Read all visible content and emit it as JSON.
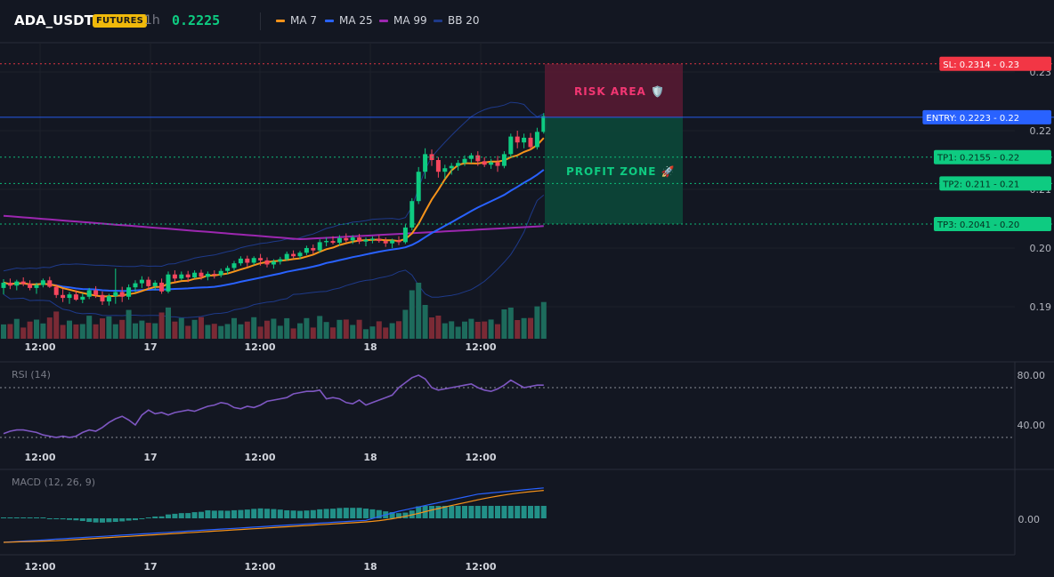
{
  "header": {
    "symbol": "ADA_USDT",
    "market_badge": "FUTURES",
    "timeframe": "1h",
    "last_price": "0.2225",
    "indicators": [
      {
        "label": "MA 7",
        "color": "#f7931a"
      },
      {
        "label": "MA 25",
        "color": "#2962ff"
      },
      {
        "label": "MA 99",
        "color": "#9c27b0"
      },
      {
        "label": "BB 20",
        "color": "#1e3a8a"
      }
    ]
  },
  "chart_data": {
    "type": "candlestick",
    "x_ticks": [
      "12:00",
      "17",
      "12:00",
      "18",
      "12:00"
    ],
    "y_ticks": [
      "0.19",
      "0.20",
      "0.21",
      "0.22",
      "0.23"
    ],
    "levels": [
      {
        "label": "SL: 0.2314",
        "suffix": "0.23",
        "price": 0.2314,
        "color": "#f23645",
        "style": "dotted"
      },
      {
        "label": "ENTRY: 0.2223",
        "suffix": "0.22",
        "price": 0.2223,
        "color": "#2962ff",
        "style": "solid"
      },
      {
        "label": "TP1: 0.2155",
        "suffix": "0.22",
        "price": 0.2155,
        "color": "#0ecb81",
        "style": "dotted"
      },
      {
        "label": "TP2: 0.211",
        "suffix": "0.21",
        "price": 0.211,
        "color": "#0ecb81",
        "style": "dotted"
      },
      {
        "label": "TP3: 0.2041",
        "suffix": "0.20",
        "price": 0.2041,
        "color": "#0ecb81",
        "style": "dotted"
      }
    ],
    "zones": {
      "risk_label": "RISK AREA 🛡️",
      "profit_label": "PROFIT ZONE 🚀"
    },
    "rsi": {
      "title": "RSI (14)",
      "y_ticks": [
        "80.00",
        "40.00"
      ],
      "upper": 70,
      "lower": 30,
      "values": [
        33,
        35,
        36,
        36,
        35,
        34,
        32,
        31,
        30,
        31,
        30,
        31,
        34,
        36,
        35,
        38,
        42,
        45,
        47,
        44,
        40,
        48,
        52,
        49,
        50,
        48,
        50,
        51,
        52,
        51,
        53,
        55,
        56,
        58,
        57,
        54,
        53,
        55,
        54,
        56,
        59,
        60,
        61,
        62,
        65,
        66,
        67,
        67,
        68,
        61,
        62,
        61,
        58,
        57,
        60,
        56,
        58,
        60,
        62,
        64,
        70,
        74,
        78,
        80,
        77,
        70,
        68,
        69,
        70,
        71,
        72,
        73,
        70,
        68,
        67,
        69,
        72,
        76,
        73,
        70,
        71,
        72,
        72
      ]
    },
    "macd": {
      "title": "MACD (12, 26, 9)",
      "y_ticks": [
        "0.00"
      ]
    },
    "candles": [
      [
        0.1932,
        0.1947,
        0.1921,
        0.1941
      ],
      [
        0.1941,
        0.1948,
        0.193,
        0.1936
      ],
      [
        0.1936,
        0.1946,
        0.1928,
        0.1943
      ],
      [
        0.1943,
        0.195,
        0.1935,
        0.1939
      ],
      [
        0.1939,
        0.1945,
        0.1928,
        0.1932
      ],
      [
        0.1932,
        0.1941,
        0.1922,
        0.1937
      ],
      [
        0.1937,
        0.1948,
        0.1933,
        0.1945
      ],
      [
        0.1945,
        0.1951,
        0.1932,
        0.1934
      ],
      [
        0.1934,
        0.1938,
        0.1915,
        0.192
      ],
      [
        0.192,
        0.193,
        0.1908,
        0.1915
      ],
      [
        0.1915,
        0.1925,
        0.1905,
        0.1921
      ],
      [
        0.1921,
        0.1928,
        0.191,
        0.1912
      ],
      [
        0.1912,
        0.1923,
        0.1906,
        0.1917
      ],
      [
        0.1917,
        0.1932,
        0.1913,
        0.1928
      ],
      [
        0.1928,
        0.1935,
        0.1915,
        0.192
      ],
      [
        0.192,
        0.1926,
        0.1903,
        0.1909
      ],
      [
        0.1909,
        0.1922,
        0.1902,
        0.1918
      ],
      [
        0.1918,
        0.1965,
        0.1905,
        0.1925
      ],
      [
        0.1925,
        0.1934,
        0.1908,
        0.1917
      ],
      [
        0.1917,
        0.1938,
        0.1912,
        0.1933
      ],
      [
        0.1933,
        0.1945,
        0.1925,
        0.194
      ],
      [
        0.194,
        0.1952,
        0.1932,
        0.1946
      ],
      [
        0.1946,
        0.1951,
        0.193,
        0.1935
      ],
      [
        0.1935,
        0.1945,
        0.1928,
        0.1941
      ],
      [
        0.1941,
        0.1948,
        0.1922,
        0.1926
      ],
      [
        0.1926,
        0.196,
        0.1923,
        0.1955
      ],
      [
        0.1955,
        0.1962,
        0.1942,
        0.1948
      ],
      [
        0.1948,
        0.196,
        0.1945,
        0.1955
      ],
      [
        0.1955,
        0.1961,
        0.1942,
        0.195
      ],
      [
        0.195,
        0.1962,
        0.1948,
        0.1958
      ],
      [
        0.1958,
        0.1963,
        0.1946,
        0.1951
      ],
      [
        0.1951,
        0.196,
        0.1945,
        0.1956
      ],
      [
        0.1956,
        0.1962,
        0.1948,
        0.1954
      ],
      [
        0.1954,
        0.1965,
        0.195,
        0.1961
      ],
      [
        0.1961,
        0.197,
        0.1955,
        0.1966
      ],
      [
        0.1966,
        0.1978,
        0.1962,
        0.1974
      ],
      [
        0.1974,
        0.1986,
        0.197,
        0.1982
      ],
      [
        0.1982,
        0.1987,
        0.1968,
        0.1975
      ],
      [
        0.1975,
        0.1986,
        0.1971,
        0.1983
      ],
      [
        0.1983,
        0.199,
        0.197,
        0.1979
      ],
      [
        0.1979,
        0.1984,
        0.1967,
        0.1972
      ],
      [
        0.1972,
        0.1981,
        0.1965,
        0.1977
      ],
      [
        0.1977,
        0.1985,
        0.1972,
        0.1981
      ],
      [
        0.1981,
        0.1994,
        0.1978,
        0.199
      ],
      [
        0.199,
        0.1996,
        0.1983,
        0.1986
      ],
      [
        0.1986,
        0.1995,
        0.1981,
        0.1992
      ],
      [
        0.1992,
        0.2004,
        0.1988,
        0.2
      ],
      [
        0.2,
        0.2006,
        0.199,
        0.1996
      ],
      [
        0.1996,
        0.2015,
        0.1992,
        0.201
      ],
      [
        0.201,
        0.2018,
        0.2003,
        0.2012
      ],
      [
        0.2012,
        0.202,
        0.2006,
        0.2009
      ],
      [
        0.2009,
        0.2022,
        0.2004,
        0.2017
      ],
      [
        0.2017,
        0.2025,
        0.201,
        0.2013
      ],
      [
        0.2013,
        0.2022,
        0.2007,
        0.2018
      ],
      [
        0.2018,
        0.2024,
        0.2007,
        0.2011
      ],
      [
        0.2011,
        0.2018,
        0.2003,
        0.2014
      ],
      [
        0.2014,
        0.202,
        0.2008,
        0.2016
      ],
      [
        0.2016,
        0.2022,
        0.2009,
        0.2012
      ],
      [
        0.2012,
        0.2018,
        0.2002,
        0.2008
      ],
      [
        0.2008,
        0.2016,
        0.2,
        0.2013
      ],
      [
        0.2013,
        0.202,
        0.2005,
        0.201
      ],
      [
        0.201,
        0.204,
        0.2007,
        0.2035
      ],
      [
        0.2035,
        0.2085,
        0.203,
        0.208
      ],
      [
        0.208,
        0.2138,
        0.2075,
        0.213
      ],
      [
        0.213,
        0.217,
        0.2118,
        0.216
      ],
      [
        0.216,
        0.2168,
        0.214,
        0.215
      ],
      [
        0.215,
        0.2155,
        0.212,
        0.213
      ],
      [
        0.213,
        0.2142,
        0.2118,
        0.2136
      ],
      [
        0.2136,
        0.2145,
        0.2125,
        0.214
      ],
      [
        0.214,
        0.215,
        0.2132,
        0.2145
      ],
      [
        0.2145,
        0.2158,
        0.214,
        0.2152
      ],
      [
        0.2152,
        0.2162,
        0.2145,
        0.2158
      ],
      [
        0.2158,
        0.2165,
        0.214,
        0.2148
      ],
      [
        0.2148,
        0.2155,
        0.2138,
        0.2142
      ],
      [
        0.2142,
        0.2152,
        0.2135,
        0.2146
      ],
      [
        0.2146,
        0.2157,
        0.213,
        0.214
      ],
      [
        0.214,
        0.2165,
        0.2136,
        0.216
      ],
      [
        0.216,
        0.2195,
        0.2155,
        0.219
      ],
      [
        0.219,
        0.22,
        0.217,
        0.218
      ],
      [
        0.218,
        0.2195,
        0.217,
        0.2188
      ],
      [
        0.2188,
        0.2196,
        0.2168,
        0.2172
      ],
      [
        0.2172,
        0.2205,
        0.2168,
        0.2198
      ],
      [
        0.2198,
        0.223,
        0.2195,
        0.2225
      ]
    ]
  }
}
